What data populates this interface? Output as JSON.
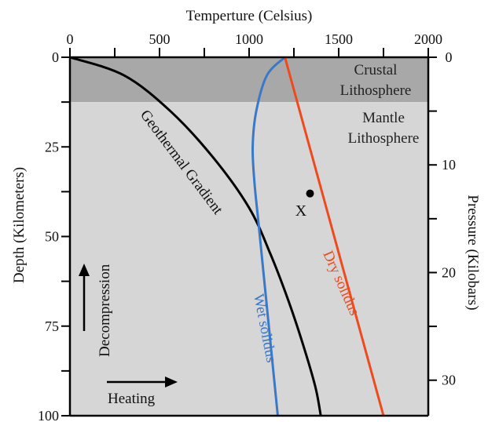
{
  "chart_data": {
    "type": "line",
    "title": "",
    "xlabel": "Temperture (Celsius)",
    "ylabel": "Depth (Kilometers)",
    "y2label": "Pressure (Kilobars)",
    "xlim": [
      0,
      2000
    ],
    "ylim": [
      0,
      100
    ],
    "y2lim": [
      0,
      33.3
    ],
    "x_ticks": [
      0,
      500,
      1000,
      1500,
      2000
    ],
    "x_ticks_minor": [
      250,
      750,
      1250,
      1750
    ],
    "y_ticks": [
      0,
      25,
      50,
      75,
      100
    ],
    "y_ticks_minor": [
      12.5,
      37.5,
      62.5,
      87.5
    ],
    "y2_ticks": [
      0,
      10,
      20,
      30
    ],
    "y2_ticks_minor": [
      5,
      15,
      25
    ],
    "y_inverted": true,
    "grid": false,
    "colors": {
      "crust_band": "#a9a8a8",
      "mantle_band": "#d6d6d6",
      "geotherm": "#000000",
      "wet_solidus": "#3a78c8",
      "dry_solidus": "#ee4a1e"
    },
    "zones": [
      {
        "label_lines": [
          "Crustal",
          "Lithosphere"
        ],
        "depth_range": [
          0,
          12.5
        ]
      },
      {
        "label_lines": [
          "Mantle",
          "Lithosphere"
        ],
        "depth_range": [
          12.5,
          100
        ]
      }
    ],
    "series": [
      {
        "name": "Geothermal Gradient",
        "points": [
          [
            0,
            0
          ],
          [
            300,
            5
          ],
          [
            560,
            15
          ],
          [
            800,
            28
          ],
          [
            1000,
            42
          ],
          [
            1120,
            55
          ],
          [
            1220,
            68
          ],
          [
            1300,
            80
          ],
          [
            1370,
            92
          ],
          [
            1400,
            100
          ]
        ]
      },
      {
        "name": "Wet solidus",
        "points": [
          [
            1200,
            0
          ],
          [
            1100,
            5
          ],
          [
            1040,
            15
          ],
          [
            1020,
            25
          ],
          [
            1030,
            35
          ],
          [
            1050,
            45
          ],
          [
            1070,
            55
          ],
          [
            1090,
            65
          ],
          [
            1110,
            75
          ],
          [
            1130,
            85
          ],
          [
            1160,
            100
          ]
        ]
      },
      {
        "name": "Dry solidus",
        "points": [
          [
            1200,
            0
          ],
          [
            1750,
            100
          ]
        ]
      }
    ],
    "annotations": [
      {
        "label": "X",
        "point": [
          1340,
          38
        ]
      },
      {
        "label": "Decompression",
        "arrow": "up"
      },
      {
        "label": "Heating",
        "arrow": "right"
      }
    ]
  }
}
